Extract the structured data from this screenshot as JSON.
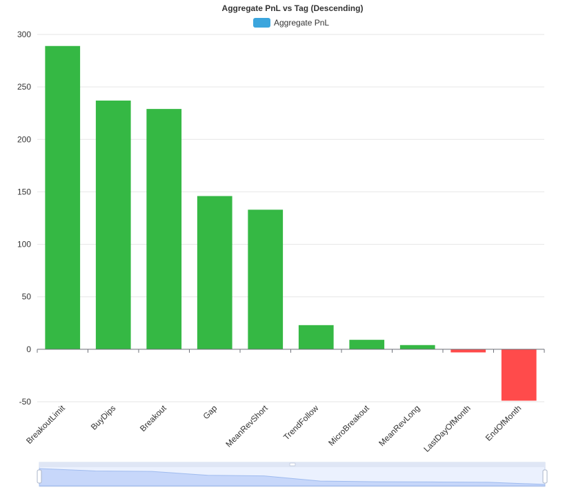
{
  "chart_data": {
    "type": "bar",
    "title": "Aggregate PnL vs Tag (Descending)",
    "legend": {
      "label": "Aggregate PnL",
      "color": "#3ba5dd",
      "position": "top-center"
    },
    "categories": [
      "BreakoutLimit",
      "BuyDips",
      "Breakout",
      "Gap",
      "MeanRevShort",
      "TrendFollow",
      "MicroBreakout",
      "MeanRevLong",
      "LastDayOfMonth",
      "EndOfMonth"
    ],
    "series": [
      {
        "name": "Aggregate PnL",
        "values": [
          289,
          237,
          229,
          146,
          133,
          23,
          9,
          4,
          -3,
          -49
        ]
      }
    ],
    "ylim": [
      -50,
      300
    ],
    "yticks": [
      300,
      250,
      200,
      150,
      100,
      50,
      0,
      -50
    ],
    "positive_color": "#35b844",
    "negative_color": "#ff4b4b",
    "grid": true
  },
  "data_zoom": {
    "range_start": 0,
    "range_end": 100
  }
}
